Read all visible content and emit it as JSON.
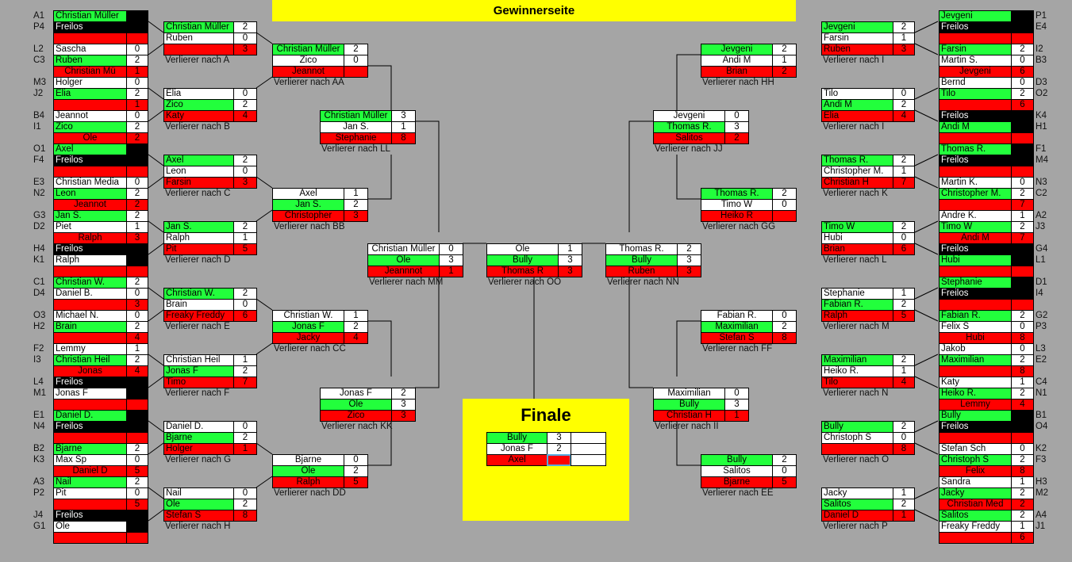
{
  "header": {
    "title": "Gewinnerseite"
  },
  "colors": {
    "winner": "#22ff3c",
    "loser": "#ff0000",
    "bye": "#000000",
    "background": "#a5a5a5",
    "highlight": "#ffff00"
  },
  "left_round1": [
    [
      "A1",
      "Christian Müller",
      "",
      "g"
    ],
    [
      "P4",
      "Freilos",
      "",
      "b"
    ],
    [
      "",
      "",
      "",
      "r"
    ],
    [
      "L2",
      "Sascha",
      "0",
      "w"
    ],
    [
      "C3",
      "Ruben",
      "2",
      "g"
    ],
    [
      "",
      "Christian Mü",
      "1",
      "r"
    ],
    [
      "M3",
      "Holger",
      "0",
      "w"
    ],
    [
      "J2",
      "Elia",
      "2",
      "g"
    ],
    [
      "",
      "",
      "1",
      "r"
    ],
    [
      "B4",
      "Jeannot",
      "0",
      "w"
    ],
    [
      "I1",
      "Zico",
      "2",
      "g"
    ],
    [
      "",
      "Ole",
      "2",
      "r"
    ],
    [
      "O1",
      "Axel",
      "",
      "g"
    ],
    [
      "F4",
      "Freilos",
      "",
      "b"
    ],
    [
      "",
      "",
      "",
      "r"
    ],
    [
      "E3",
      "Christian Media",
      "0",
      "w"
    ],
    [
      "N2",
      "Leon",
      "2",
      "g"
    ],
    [
      "",
      "Jeannot",
      "2",
      "r"
    ],
    [
      "G3",
      "Jan S.",
      "2",
      "g"
    ],
    [
      "D2",
      "Piet",
      "1",
      "w"
    ],
    [
      "",
      "Ralph",
      "3",
      "r"
    ],
    [
      "H4",
      "Freilos",
      "",
      "b"
    ],
    [
      "K1",
      "Ralph",
      "",
      "w"
    ],
    [
      "",
      "",
      "",
      "r"
    ],
    [
      "C1",
      "Christian W.",
      "2",
      "g"
    ],
    [
      "D4",
      "Daniel B.",
      "0",
      "w"
    ],
    [
      "",
      "",
      "3",
      "r"
    ],
    [
      "O3",
      "Michael N.",
      "0",
      "w"
    ],
    [
      "H2",
      "Brain",
      "2",
      "g"
    ],
    [
      "",
      "",
      "4",
      "r"
    ],
    [
      "F2",
      "Lemmy",
      "1",
      "w"
    ],
    [
      "I3",
      "Christian Heil",
      "2",
      "g"
    ],
    [
      "",
      "Jonas",
      "4",
      "r"
    ],
    [
      "L4",
      "Freilos",
      "",
      "b"
    ],
    [
      "M1",
      "Jonas F",
      "",
      "w"
    ],
    [
      "",
      "",
      "",
      "r"
    ],
    [
      "E1",
      "Daniel D.",
      "",
      "g"
    ],
    [
      "N4",
      "Freilos",
      "",
      "b"
    ],
    [
      "",
      "",
      "",
      "r"
    ],
    [
      "B2",
      "Bjarne",
      "2",
      "g"
    ],
    [
      "K3",
      "Max Sp",
      "0",
      "w"
    ],
    [
      "",
      "Daniel D",
      "5",
      "r"
    ],
    [
      "A3",
      "Nail",
      "2",
      "g"
    ],
    [
      "P2",
      "Pit",
      "0",
      "w"
    ],
    [
      "",
      "",
      "5",
      "r"
    ],
    [
      "J4",
      "Freilos",
      "",
      "b"
    ],
    [
      "G1",
      "Ole",
      "",
      "w"
    ],
    [
      "",
      "",
      "",
      "r"
    ]
  ],
  "right_round1": [
    [
      "P1",
      "Jevgeni",
      "",
      "g"
    ],
    [
      "E4",
      "Freilos",
      "",
      "b"
    ],
    [
      "",
      "",
      "",
      "r"
    ],
    [
      "I2",
      "Farsin",
      "2",
      "g"
    ],
    [
      "B3",
      "Martin S.",
      "0",
      "w"
    ],
    [
      "",
      "Jevgeni",
      "6",
      "r"
    ],
    [
      "D3",
      "Bernd",
      "0",
      "w"
    ],
    [
      "O2",
      "Tilo",
      "2",
      "g"
    ],
    [
      "",
      "",
      "6",
      "r"
    ],
    [
      "K4",
      "Freilos",
      "",
      "b"
    ],
    [
      "H1",
      "Andi M",
      "",
      "g"
    ],
    [
      "",
      "",
      "",
      "r"
    ],
    [
      "F1",
      "Thomas R.",
      "",
      "g"
    ],
    [
      "M4",
      "Freilos",
      "",
      "b"
    ],
    [
      "",
      "",
      "",
      "r"
    ],
    [
      "N3",
      "Martin K.",
      "0",
      "w"
    ],
    [
      "C2",
      "Christopher M.",
      "2",
      "g"
    ],
    [
      "",
      "",
      "7",
      "r"
    ],
    [
      "A2",
      "Andre K.",
      "1",
      "w"
    ],
    [
      "J3",
      "Timo W",
      "2",
      "g"
    ],
    [
      "",
      "Andi M",
      "7",
      "r"
    ],
    [
      "G4",
      "Freilos",
      "",
      "b"
    ],
    [
      "L1",
      "Hubi",
      "",
      "g"
    ],
    [
      "",
      "",
      "",
      "r"
    ],
    [
      "D1",
      "Stephanie",
      "",
      "g"
    ],
    [
      "I4",
      "Freilos",
      "",
      "b"
    ],
    [
      "",
      "",
      "",
      "r"
    ],
    [
      "G2",
      "Fabian R.",
      "2",
      "g"
    ],
    [
      "P3",
      "Felix S",
      "0",
      "w"
    ],
    [
      "",
      "Hubi",
      "8",
      "r"
    ],
    [
      "L3",
      "Jakob",
      "0",
      "w"
    ],
    [
      "E2",
      "Maximilian",
      "2",
      "g"
    ],
    [
      "",
      "",
      "8",
      "r"
    ],
    [
      "C4",
      "Katy",
      "1",
      "w"
    ],
    [
      "N1",
      "Heiko R.",
      "2",
      "g"
    ],
    [
      "",
      "Lemmy",
      "4",
      "r"
    ],
    [
      "B1",
      "Bully",
      "",
      "g"
    ],
    [
      "O4",
      "Freilos",
      "",
      "b"
    ],
    [
      "",
      "",
      "",
      "r"
    ],
    [
      "K2",
      "Stefan Sch",
      "0",
      "w"
    ],
    [
      "F3",
      "Christoph S",
      "2",
      "g"
    ],
    [
      "",
      "Felix",
      "8",
      "r"
    ],
    [
      "H3",
      "Sandra",
      "1",
      "w"
    ],
    [
      "M2",
      "Jacky",
      "2",
      "g"
    ],
    [
      "",
      "Christian Med",
      "2",
      "r"
    ],
    [
      "A4",
      "Salitos",
      "2",
      "g"
    ],
    [
      "J1",
      "Freaky Freddy",
      "1",
      "w"
    ],
    [
      "",
      "",
      "6",
      "r"
    ]
  ],
  "left_round2": [
    {
      "label": "Verlierer nach A",
      "rows": [
        [
          "Christian Müller",
          "2",
          "g"
        ],
        [
          "Ruben",
          "0",
          "w"
        ],
        [
          "",
          "3",
          "r"
        ]
      ]
    },
    {
      "label": "Verlierer nach B",
      "rows": [
        [
          "Elia",
          "0",
          "w"
        ],
        [
          "Zico",
          "2",
          "g"
        ],
        [
          "Katy",
          "4",
          "r"
        ]
      ]
    },
    {
      "label": "Verlierer nach C",
      "rows": [
        [
          "Axel",
          "2",
          "g"
        ],
        [
          "Leon",
          "0",
          "w"
        ],
        [
          "Farsin",
          "3",
          "r"
        ]
      ]
    },
    {
      "label": "Verlierer nach D",
      "rows": [
        [
          "Jan S.",
          "2",
          "g"
        ],
        [
          "Ralph",
          "1",
          "w"
        ],
        [
          "Pit",
          "5",
          "r"
        ]
      ]
    },
    {
      "label": "Verlierer nach E",
      "rows": [
        [
          "Christian W.",
          "2",
          "g"
        ],
        [
          "Brain",
          "0",
          "w"
        ],
        [
          "Freaky Freddy",
          "6",
          "r"
        ]
      ]
    },
    {
      "label": "Verlierer nach F",
      "rows": [
        [
          "Christian Heil",
          "1",
          "w"
        ],
        [
          "Jonas F",
          "2",
          "g"
        ],
        [
          "Timo",
          "7",
          "r"
        ]
      ]
    },
    {
      "label": "Verlierer nach G",
      "rows": [
        [
          "Daniel D.",
          "0",
          "w"
        ],
        [
          "Bjarne",
          "2",
          "g"
        ],
        [
          "Holger",
          "1",
          "r"
        ]
      ]
    },
    {
      "label": "Verlierer nach H",
      "rows": [
        [
          "Nail",
          "0",
          "w"
        ],
        [
          "Ole",
          "2",
          "g"
        ],
        [
          "Stefan S",
          "8",
          "r"
        ]
      ]
    }
  ],
  "right_round2": [
    {
      "label": "Verlierer nach I",
      "rows": [
        [
          "Jevgeni",
          "2",
          "g"
        ],
        [
          "Farsin",
          "1",
          "w"
        ],
        [
          "Ruben",
          "3",
          "r"
        ]
      ]
    },
    {
      "label": "Verlierer nach I",
      "rows": [
        [
          "Tilo",
          "0",
          "w"
        ],
        [
          "Andi M",
          "2",
          "g"
        ],
        [
          "Elia",
          "4",
          "r"
        ]
      ]
    },
    {
      "label": "Verlierer nach K",
      "rows": [
        [
          "Thomas R.",
          "2",
          "g"
        ],
        [
          "Christopher M.",
          "1",
          "w"
        ],
        [
          "Christian H",
          "7",
          "r"
        ]
      ]
    },
    {
      "label": "Verlierer nach L",
      "rows": [
        [
          "Timo W",
          "2",
          "g"
        ],
        [
          "Hubi",
          "0",
          "w"
        ],
        [
          "Brian",
          "6",
          "r"
        ]
      ]
    },
    {
      "label": "Verlierer nach M",
      "rows": [
        [
          "Stephanie",
          "1",
          "w"
        ],
        [
          "Fabian R.",
          "2",
          "g"
        ],
        [
          "Ralph",
          "5",
          "r"
        ]
      ]
    },
    {
      "label": "Verlierer nach N",
      "rows": [
        [
          "Maximilian",
          "2",
          "g"
        ],
        [
          "Heiko R.",
          "1",
          "w"
        ],
        [
          "Tilo",
          "4",
          "r"
        ]
      ]
    },
    {
      "label": "Verlierer nach O",
      "rows": [
        [
          "Bully",
          "2",
          "g"
        ],
        [
          "Christoph S",
          "0",
          "w"
        ],
        [
          "",
          "8",
          "r"
        ]
      ]
    },
    {
      "label": "Verlierer nach P",
      "rows": [
        [
          "Jacky",
          "1",
          "w"
        ],
        [
          "Salitos",
          "2",
          "g"
        ],
        [
          "Daniel D",
          "1",
          "r"
        ]
      ]
    }
  ],
  "left_round3": [
    {
      "label": "Verlierer nach AA",
      "rows": [
        [
          "Christian Müller",
          "2",
          "g"
        ],
        [
          "Zico",
          "0",
          "w"
        ],
        [
          "Jeannot",
          "",
          "r"
        ]
      ]
    },
    {
      "label": "Verlierer nach BB",
      "rows": [
        [
          "Axel",
          "1",
          "w"
        ],
        [
          "Jan S.",
          "2",
          "g"
        ],
        [
          "Christopher",
          "3",
          "r"
        ]
      ]
    },
    {
      "label": "Verlierer nach CC",
      "rows": [
        [
          "Christian W.",
          "1",
          "w"
        ],
        [
          "Jonas F",
          "2",
          "g"
        ],
        [
          "Jacky",
          "4",
          "r"
        ]
      ]
    },
    {
      "label": "Verlierer nach DD",
      "rows": [
        [
          "Bjarne",
          "0",
          "w"
        ],
        [
          "Ole",
          "2",
          "g"
        ],
        [
          "Ralph",
          "5",
          "r"
        ]
      ]
    }
  ],
  "right_round3": [
    {
      "label": "Verlierer nach HH",
      "rows": [
        [
          "Jevgeni",
          "2",
          "g"
        ],
        [
          "Andi M",
          "1",
          "w"
        ],
        [
          "Brian",
          "2",
          "r"
        ]
      ]
    },
    {
      "label": "Verlierer nach GG",
      "rows": [
        [
          "Thomas R.",
          "2",
          "g"
        ],
        [
          "Timo W",
          "0",
          "w"
        ],
        [
          "Heiko R",
          "",
          "r"
        ]
      ]
    },
    {
      "label": "Verlierer nach FF",
      "rows": [
        [
          "Fabian R.",
          "0",
          "w"
        ],
        [
          "Maximilian",
          "2",
          "g"
        ],
        [
          "Stefan S",
          "8",
          "r"
        ]
      ]
    },
    {
      "label": "Verlierer nach EE",
      "rows": [
        [
          "Bully",
          "2",
          "g"
        ],
        [
          "Salitos",
          "0",
          "w"
        ],
        [
          "Bjarne",
          "5",
          "r"
        ]
      ]
    }
  ],
  "left_round4": [
    {
      "label": "Verlierer nach LL",
      "rows": [
        [
          "Christian Müller",
          "3",
          "g"
        ],
        [
          "Jan S.",
          "1",
          "w"
        ],
        [
          "Stephanie",
          "8",
          "r"
        ]
      ]
    },
    {
      "label": "Verlierer nach KK",
      "rows": [
        [
          "Jonas F",
          "2",
          "w"
        ],
        [
          "Ole",
          "3",
          "g"
        ],
        [
          "Zico",
          "3",
          "r"
        ]
      ]
    }
  ],
  "right_round4": [
    {
      "label": "Verlierer nach JJ",
      "rows": [
        [
          "Jevgeni",
          "0",
          "w"
        ],
        [
          "Thomas R.",
          "3",
          "g"
        ],
        [
          "Salitos",
          "2",
          "r"
        ]
      ]
    },
    {
      "label": "Verlierer nach II",
      "rows": [
        [
          "Maximilian",
          "0",
          "w"
        ],
        [
          "Bully",
          "3",
          "g"
        ],
        [
          "Christian H",
          "1",
          "r"
        ]
      ]
    }
  ],
  "semifinals": [
    {
      "label": "Verlierer nach MM",
      "rows": [
        [
          "Christian Müller",
          "0",
          "w"
        ],
        [
          "Ole",
          "3",
          "g"
        ],
        [
          "Jeannnot",
          "1",
          "r"
        ]
      ]
    },
    {
      "label": "Verlierer nach OO",
      "rows": [
        [
          "Ole",
          "1",
          "w"
        ],
        [
          "Bully",
          "3",
          "g"
        ],
        [
          "Thomas R",
          "3",
          "r"
        ]
      ]
    },
    {
      "label": "Verlierer nach NN",
      "rows": [
        [
          "Thomas R.",
          "2",
          "w"
        ],
        [
          "Bully",
          "3",
          "g"
        ],
        [
          "Ruben",
          "3",
          "r"
        ]
      ]
    }
  ],
  "final": {
    "title": "Finale",
    "rows": [
      [
        "Bully",
        "3",
        "g"
      ],
      [
        "Jonas F",
        "2",
        "w"
      ],
      [
        "Axel",
        "",
        "r"
      ]
    ]
  }
}
